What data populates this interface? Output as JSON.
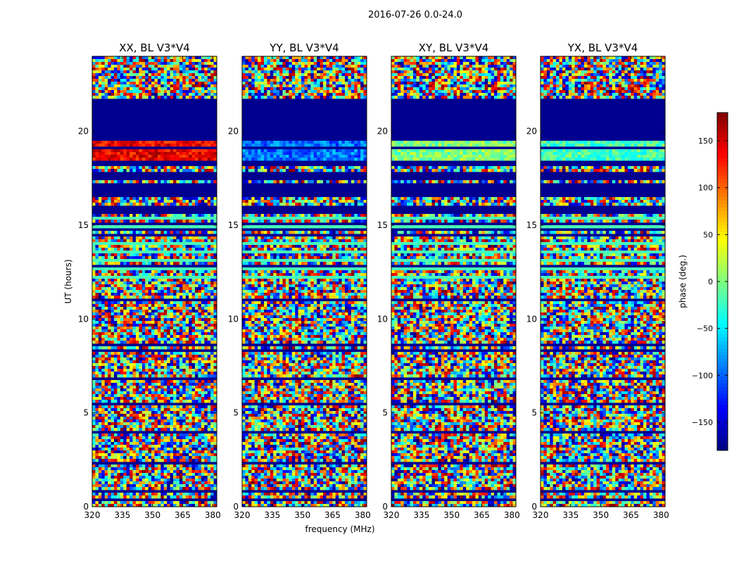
{
  "figure": {
    "suptitle": "2016-07-26 0.0-24.0"
  },
  "chart_data": {
    "type": "heatmap",
    "colormap": "jet",
    "x_units": "MHz",
    "y_units": "hours",
    "x_range": [
      320,
      382
    ],
    "y_range": [
      0,
      24
    ],
    "x_ticks": [
      320,
      335,
      350,
      365,
      380
    ],
    "y_ticks": [
      0,
      5,
      10,
      15,
      20
    ],
    "xlabel": "frequency (MHz)",
    "ylabel": "UT (hours)",
    "panels": [
      {
        "title": "XX, BL V3*V4",
        "masked_bands": [
          [
            15.6,
            16.1
          ],
          [
            16.5,
            17.2
          ],
          [
            17.35,
            17.8
          ],
          [
            18.1,
            18.5
          ],
          [
            19.5,
            21.8
          ]
        ],
        "dominant_phase_deg": 140
      },
      {
        "title": "YY, BL V3*V4",
        "masked_bands": [
          [
            15.6,
            16.1
          ],
          [
            16.5,
            17.2
          ],
          [
            17.35,
            17.8
          ],
          [
            18.1,
            18.5
          ],
          [
            19.5,
            21.8
          ]
        ],
        "dominant_phase_deg": -95
      },
      {
        "title": "XY, BL V3*V4",
        "masked_bands": [
          [
            15.6,
            16.1
          ],
          [
            16.5,
            17.2
          ],
          [
            17.35,
            17.8
          ],
          [
            18.1,
            18.5
          ],
          [
            19.5,
            21.8
          ]
        ],
        "dominant_phase_deg": 0
      },
      {
        "title": "YX, BL V3*V4",
        "masked_bands": [
          [
            15.6,
            16.1
          ],
          [
            16.5,
            17.2
          ],
          [
            17.35,
            17.8
          ],
          [
            18.1,
            18.5
          ],
          [
            19.5,
            21.8
          ]
        ],
        "dominant_phase_deg": -20
      }
    ],
    "colorbar": {
      "label": "phase (deg.)",
      "range": [
        -180,
        180
      ],
      "ticks": [
        150,
        100,
        50,
        0,
        -50,
        -100,
        -150
      ],
      "tick_labels": [
        "150",
        "100",
        "50",
        "0",
        "−50",
        "−100",
        "−150"
      ]
    }
  }
}
